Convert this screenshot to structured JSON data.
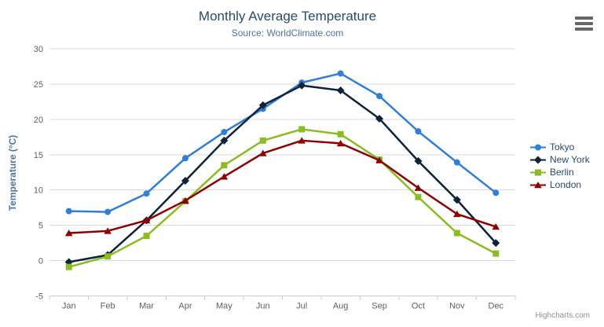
{
  "credits": {
    "label": "Highcharts.com"
  },
  "export_menu": {
    "icon": "hamburger-icon"
  },
  "colors": {
    "title": "#274b6d",
    "subtitle": "#4d759e",
    "axis_title": "#4d759e",
    "axis_label": "#606060",
    "grid": "#d8d8d8",
    "axis_line": "#c0d0e0",
    "tick": "#c0d0e0",
    "legend_text": "#274b6d",
    "credits": "#909090",
    "menu_icon": "#666666"
  },
  "chart_data": {
    "type": "line",
    "title": "Monthly Average Temperature",
    "subtitle": "Source: WorldClimate.com",
    "categories": [
      "Jan",
      "Feb",
      "Mar",
      "Apr",
      "May",
      "Jun",
      "Jul",
      "Aug",
      "Sep",
      "Oct",
      "Nov",
      "Dec"
    ],
    "xlabel": "",
    "ylabel": "Temperature (°C)",
    "ylim": [
      -5,
      30
    ],
    "ytick_interval": 5,
    "grid": true,
    "legend_position": "right",
    "series": [
      {
        "name": "Tokyo",
        "color": "#2f7ed8",
        "marker": "circle",
        "values": [
          7.0,
          6.9,
          9.5,
          14.5,
          18.2,
          21.5,
          25.2,
          26.5,
          23.3,
          18.3,
          13.9,
          9.6
        ]
      },
      {
        "name": "New York",
        "color": "#0d233a",
        "marker": "diamond",
        "values": [
          -0.2,
          0.8,
          5.7,
          11.3,
          17.0,
          22.0,
          24.8,
          24.1,
          20.1,
          14.1,
          8.6,
          2.5
        ]
      },
      {
        "name": "Berlin",
        "color": "#8bbc21",
        "marker": "square",
        "values": [
          -0.9,
          0.6,
          3.5,
          8.4,
          13.5,
          17.0,
          18.6,
          17.9,
          14.3,
          9.0,
          3.9,
          1.0
        ]
      },
      {
        "name": "London",
        "color": "#910000",
        "marker": "triangle",
        "values": [
          3.9,
          4.2,
          5.7,
          8.5,
          11.9,
          15.2,
          17.0,
          16.6,
          14.2,
          10.3,
          6.6,
          4.8
        ]
      }
    ]
  }
}
